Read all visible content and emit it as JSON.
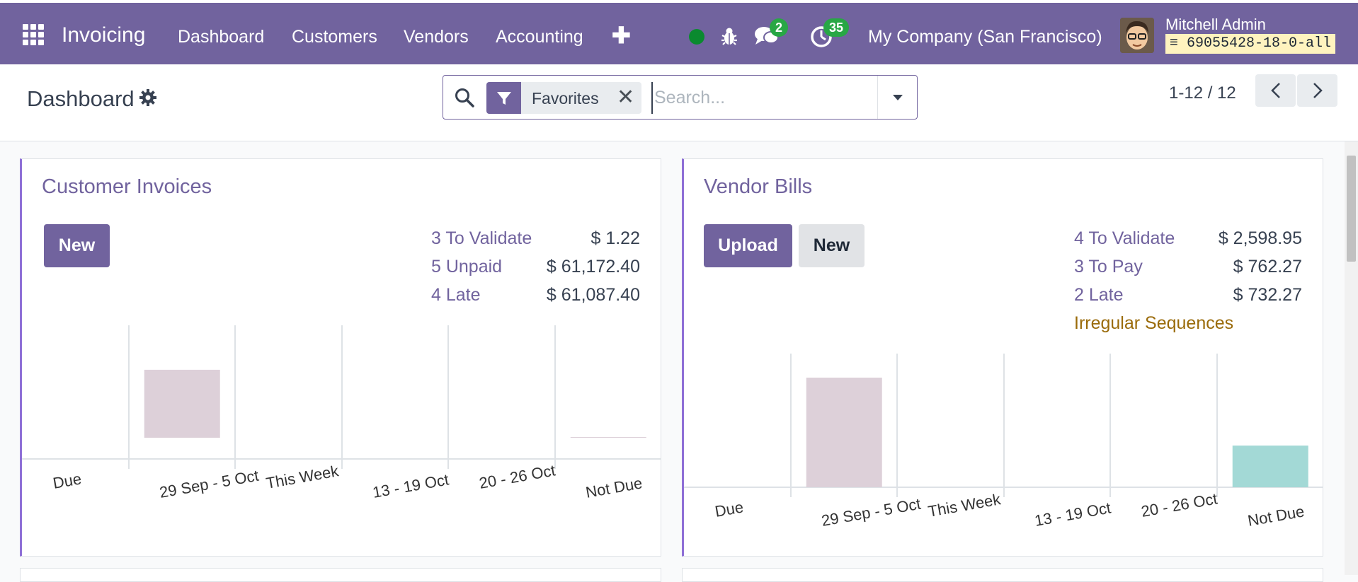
{
  "navbar": {
    "app_name": "Invoicing",
    "menu": [
      "Dashboard",
      "Customers",
      "Vendors",
      "Accounting"
    ],
    "messages_count": "2",
    "activities_count": "35",
    "company": "My Company (San Francisco)",
    "user_name": "Mitchell Admin",
    "database": "69055428-18-0-all",
    "colors": {
      "bar": "#71639e",
      "online": "#0a8a2f",
      "badge": "#28a745"
    }
  },
  "control_panel": {
    "title": "Dashboard",
    "facet_label": "Favorites",
    "search_placeholder": "Search...",
    "pager": "1-12 / 12"
  },
  "customer_invoices": {
    "title": "Customer Invoices",
    "new_label": "New",
    "stats": [
      {
        "label": "3 To Validate",
        "value": "$ 1.22"
      },
      {
        "label": "5 Unpaid",
        "value": "$ 61,172.40"
      },
      {
        "label": "4 Late",
        "value": "$ 61,087.40"
      }
    ]
  },
  "vendor_bills": {
    "title": "Vendor Bills",
    "upload_label": "Upload",
    "new_label": "New",
    "stats": [
      {
        "label": "4 To Validate",
        "value": "$ 2,598.95"
      },
      {
        "label": "3 To Pay",
        "value": "$ 762.27"
      },
      {
        "label": "2 Late",
        "value": "$ 732.27"
      }
    ],
    "warning_link": "Irregular Sequences"
  },
  "chart_data": [
    {
      "type": "bar",
      "categories": [
        "Due",
        "29 Sep - 5 Oct",
        "This Week",
        "13 - 19 Oct",
        "20 - 26 Oct",
        "Not Due"
      ],
      "values": [
        0,
        62,
        0,
        0,
        0,
        0.5
      ],
      "colors": [
        "#ddd0d9",
        "#ddd0d9",
        "#ddd0d9",
        "#ddd0d9",
        "#ddd0d9",
        "#ddd0d9"
      ]
    },
    {
      "type": "bar",
      "categories": [
        "Due",
        "29 Sep - 5 Oct",
        "This Week",
        "13 - 19 Oct",
        "20 - 26 Oct",
        "Not Due"
      ],
      "values": [
        0,
        100,
        0,
        0,
        0,
        38
      ],
      "colors": [
        "#ddd0d9",
        "#ddd0d9",
        "#ddd0d9",
        "#ddd0d9",
        "#ddd0d9",
        "#a3d9d6"
      ]
    }
  ]
}
